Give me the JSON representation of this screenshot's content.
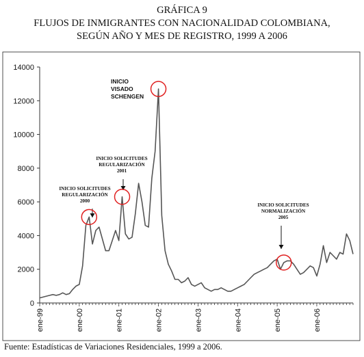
{
  "heading": {
    "line1": "GRÁFICA 9",
    "line2": "FLUJOS DE INMIGRANTES CON NACIONALIDAD COLOMBIANA,",
    "line3": "SEGÚN AÑO Y MES DE REGISTRO, 1999 A 2006"
  },
  "source_note": "Fuente: Estadísticas de Variaciones Residenciales, 1999 a 2006.",
  "chart_data": {
    "type": "line",
    "x_tick_labels": [
      "ene-99",
      "ene-00",
      "ene-01",
      "ene-02",
      "ene-03",
      "ene-04",
      "ene-05",
      "ene-06"
    ],
    "ylim": [
      0,
      14000
    ],
    "yticks": [
      0,
      2000,
      4000,
      6000,
      8000,
      10000,
      12000,
      14000
    ],
    "grid": false,
    "line_color": "#555555",
    "marker_color": "#e02020",
    "months": [
      "1999-01",
      "1999-02",
      "1999-03",
      "1999-04",
      "1999-05",
      "1999-06",
      "1999-07",
      "1999-08",
      "1999-09",
      "1999-10",
      "1999-11",
      "1999-12",
      "2000-01",
      "2000-02",
      "2000-03",
      "2000-04",
      "2000-05",
      "2000-06",
      "2000-07",
      "2000-08",
      "2000-09",
      "2000-10",
      "2000-11",
      "2000-12",
      "2001-01",
      "2001-02",
      "2001-03",
      "2001-04",
      "2001-05",
      "2001-06",
      "2001-07",
      "2001-08",
      "2001-09",
      "2001-10",
      "2001-11",
      "2001-12",
      "2002-01",
      "2002-02",
      "2002-03",
      "2002-04",
      "2002-05",
      "2002-06",
      "2002-07",
      "2002-08",
      "2002-09",
      "2002-10",
      "2002-11",
      "2002-12",
      "2003-01",
      "2003-02",
      "2003-03",
      "2003-04",
      "2003-05",
      "2003-06",
      "2003-07",
      "2003-08",
      "2003-09",
      "2003-10",
      "2003-11",
      "2003-12",
      "2004-01",
      "2004-02",
      "2004-03",
      "2004-04",
      "2004-05",
      "2004-06",
      "2004-07",
      "2004-08",
      "2004-09",
      "2004-10",
      "2004-11",
      "2004-12",
      "2005-01",
      "2005-02",
      "2005-03",
      "2005-04",
      "2005-05",
      "2005-06",
      "2005-07",
      "2005-08",
      "2005-09",
      "2005-10",
      "2005-11",
      "2005-12",
      "2006-01",
      "2006-02",
      "2006-03",
      "2006-04",
      "2006-05",
      "2006-06",
      "2006-07",
      "2006-08",
      "2006-09",
      "2006-10",
      "2006-11",
      "2006-12"
    ],
    "values": [
      300,
      350,
      400,
      450,
      500,
      450,
      500,
      600,
      500,
      550,
      800,
      1000,
      1100,
      2200,
      4600,
      5100,
      3500,
      4300,
      4500,
      3800,
      3100,
      3100,
      3700,
      4300,
      3700,
      6300,
      4100,
      3800,
      3900,
      5300,
      7100,
      6000,
      4600,
      4500,
      7400,
      9000,
      12700,
      5200,
      3100,
      2300,
      1900,
      1400,
      1400,
      1200,
      1300,
      1500,
      1100,
      1000,
      1100,
      1200,
      900,
      800,
      700,
      800,
      800,
      900,
      800,
      700,
      700,
      800,
      900,
      1000,
      1100,
      1300,
      1500,
      1700,
      1800,
      1900,
      2000,
      2100,
      2300,
      2500,
      2600,
      2000,
      2400,
      2500,
      2500,
      2300,
      2000,
      1700,
      1800,
      2000,
      2200,
      2100,
      1600,
      2300,
      3400,
      2400,
      3000,
      2800,
      2600,
      3000,
      2900,
      4100,
      3700,
      2900
    ],
    "annotations": [
      {
        "lines": [
          "INICIO",
          "VISADO",
          "SCHENGEN"
        ],
        "month": "2002-01",
        "value": 12700
      },
      {
        "lines": [
          "INICIO SOLICITUDES",
          "REGULARIZACIÓN",
          "2001"
        ],
        "month": "2001-02",
        "value": 6300
      },
      {
        "lines": [
          "INICIO SOLICITUDES",
          "REGULARIZACIÓN",
          "2000"
        ],
        "month": "2000-04",
        "value": 5100
      },
      {
        "lines": [
          "INICIO SOLICITUDES",
          "NORMALIZACIÓN",
          "2005"
        ],
        "month": "2005-03",
        "value": 2400
      }
    ]
  }
}
